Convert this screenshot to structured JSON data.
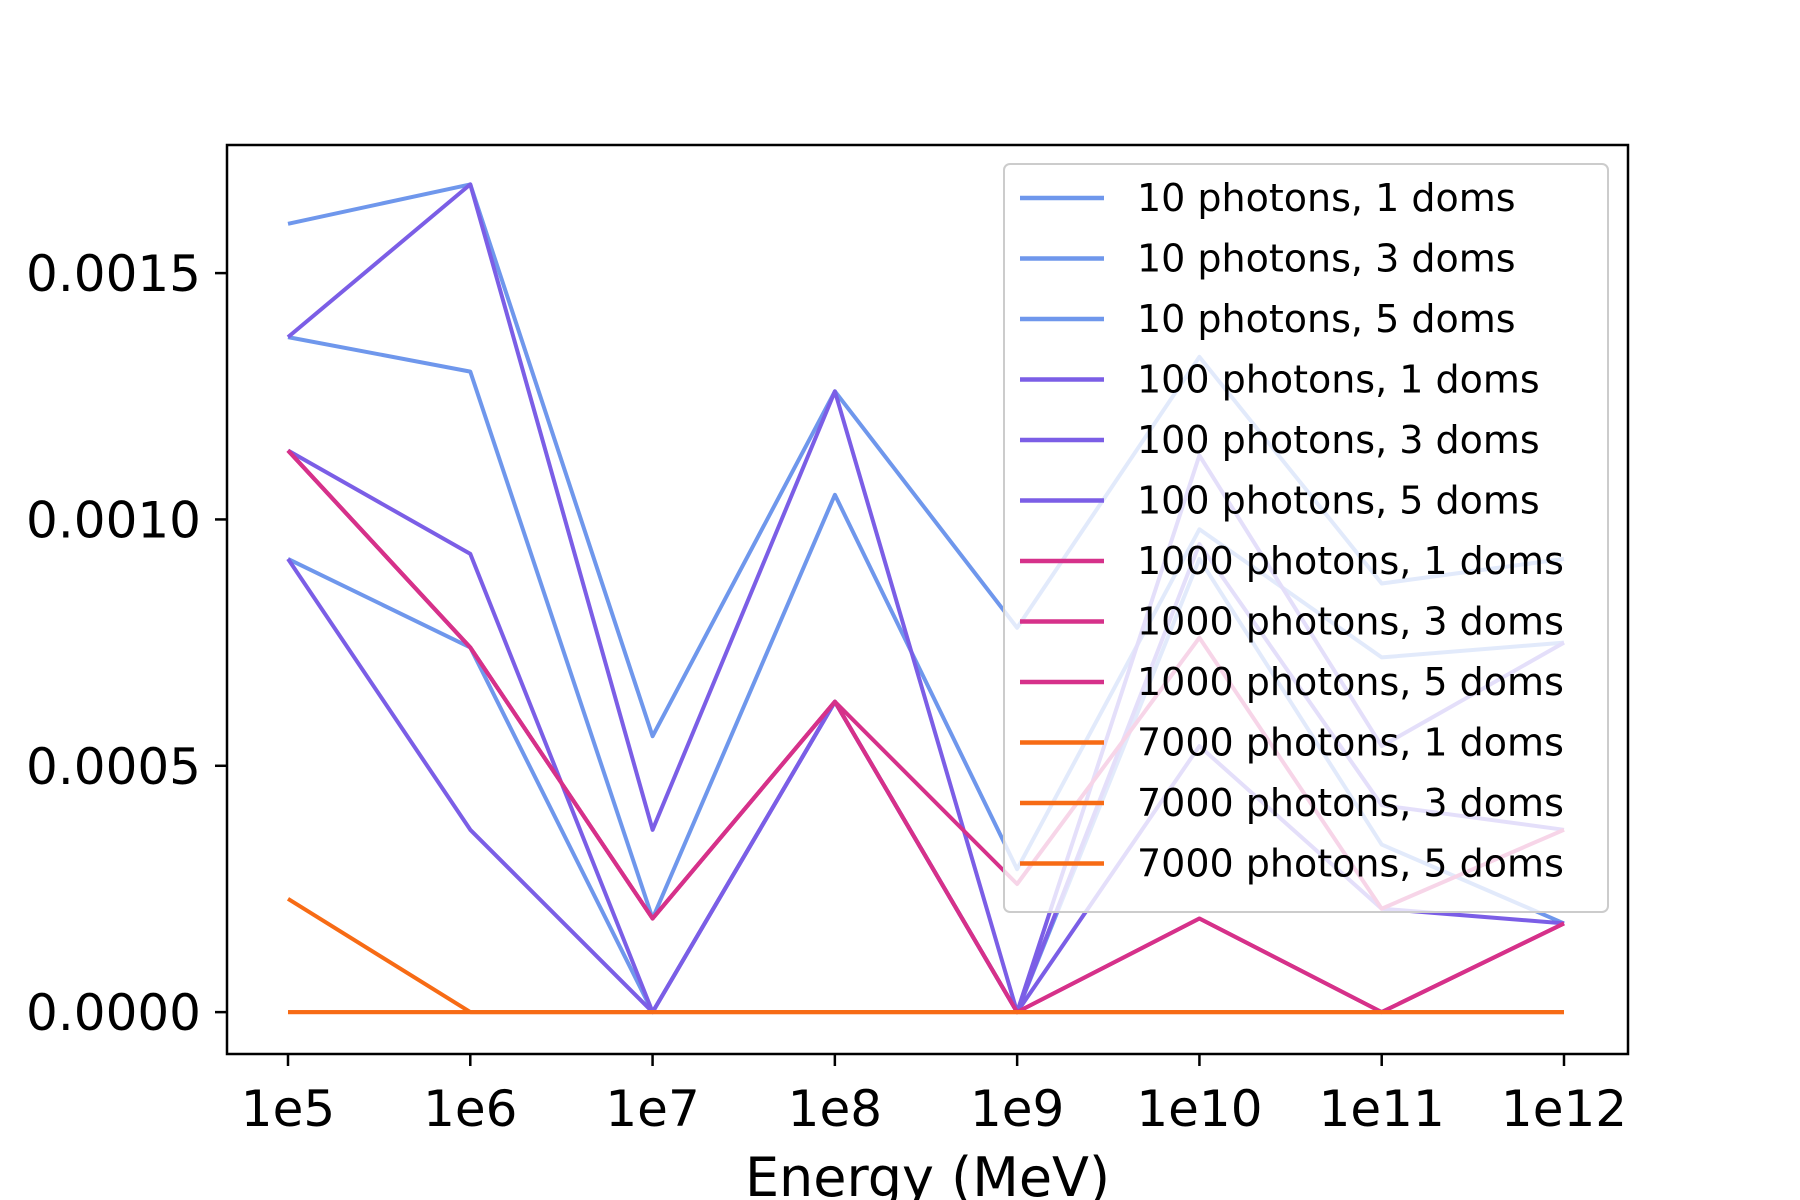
{
  "chart_data": {
    "type": "line",
    "title": "",
    "xlabel": "Energy (MeV)",
    "ylabel": "",
    "categories": [
      "1e5",
      "1e6",
      "1e7",
      "1e8",
      "1e9",
      "1e10",
      "1e11",
      "1e12"
    ],
    "yticks": [
      "0.0000",
      "0.0005",
      "0.0010",
      "0.0015"
    ],
    "ytick_values": [
      0,
      0.0005,
      0.001,
      0.0015
    ],
    "ylim": [
      -8.5e-05,
      0.00176
    ],
    "grid": false,
    "legend_position": "top-right",
    "series": [
      {
        "name": "10 photons, 1 doms",
        "color": "#6f97ec",
        "values": [
          0.0016,
          0.00168,
          0.00056,
          0.00126,
          0.00078,
          0.00133,
          0.00087,
          0.00092
        ]
      },
      {
        "name": "10 photons, 3 doms",
        "color": "#6f97ec",
        "values": [
          0.00137,
          0.0013,
          0.00019,
          0.00105,
          0.00029,
          0.00098,
          0.00072,
          0.00075
        ]
      },
      {
        "name": "10 photons, 5 doms",
        "color": "#6f97ec",
        "values": [
          0.00092,
          0.00074,
          0.0,
          0.00063,
          0.0,
          0.00092,
          0.00034,
          0.00018
        ]
      },
      {
        "name": "100 photons, 1 doms",
        "color": "#7b5ee6",
        "values": [
          0.00137,
          0.00168,
          0.00037,
          0.00126,
          0.0,
          0.00113,
          0.00054,
          0.00075
        ]
      },
      {
        "name": "100 photons, 3 doms",
        "color": "#7b5ee6",
        "values": [
          0.00114,
          0.00093,
          0.0,
          0.00063,
          0.0,
          0.00054,
          0.00021,
          0.00018
        ]
      },
      {
        "name": "100 photons, 5 doms",
        "color": "#7b5ee6",
        "values": [
          0.00092,
          0.00037,
          0.0,
          0.00063,
          0.0,
          0.00095,
          0.00042,
          0.00037
        ]
      },
      {
        "name": "1000 photons, 1 doms",
        "color": "#d6318a",
        "values": [
          0.00114,
          0.00074,
          0.00019,
          0.00063,
          0.00026,
          0.00076,
          0.00021,
          0.00037
        ]
      },
      {
        "name": "1000 photons, 3 doms",
        "color": "#d6318a",
        "values": [
          0.00114,
          0.00074,
          0.00019,
          0.00063,
          0.0,
          0.00019,
          0.0,
          0.00018
        ]
      },
      {
        "name": "1000 photons, 5 doms",
        "color": "#d6318a",
        "values": [
          0.00114,
          0.00074,
          0.00019,
          0.00063,
          0.0,
          0.00019,
          0.0,
          0.00018
        ]
      },
      {
        "name": "7000 photons, 1 doms",
        "color": "#f76b15",
        "values": [
          0.00023,
          0.0,
          0.0,
          0.0,
          0.0,
          0.0,
          0.0,
          0.0
        ]
      },
      {
        "name": "7000 photons, 3 doms",
        "color": "#f76b15",
        "values": [
          0.0,
          0.0,
          0.0,
          0.0,
          0.0,
          0.0,
          0.0,
          0.0
        ]
      },
      {
        "name": "7000 photons, 5 doms",
        "color": "#f76b15",
        "values": [
          0.0,
          0.0,
          0.0,
          0.0,
          0.0,
          0.0,
          0.0,
          0.0
        ]
      }
    ]
  }
}
